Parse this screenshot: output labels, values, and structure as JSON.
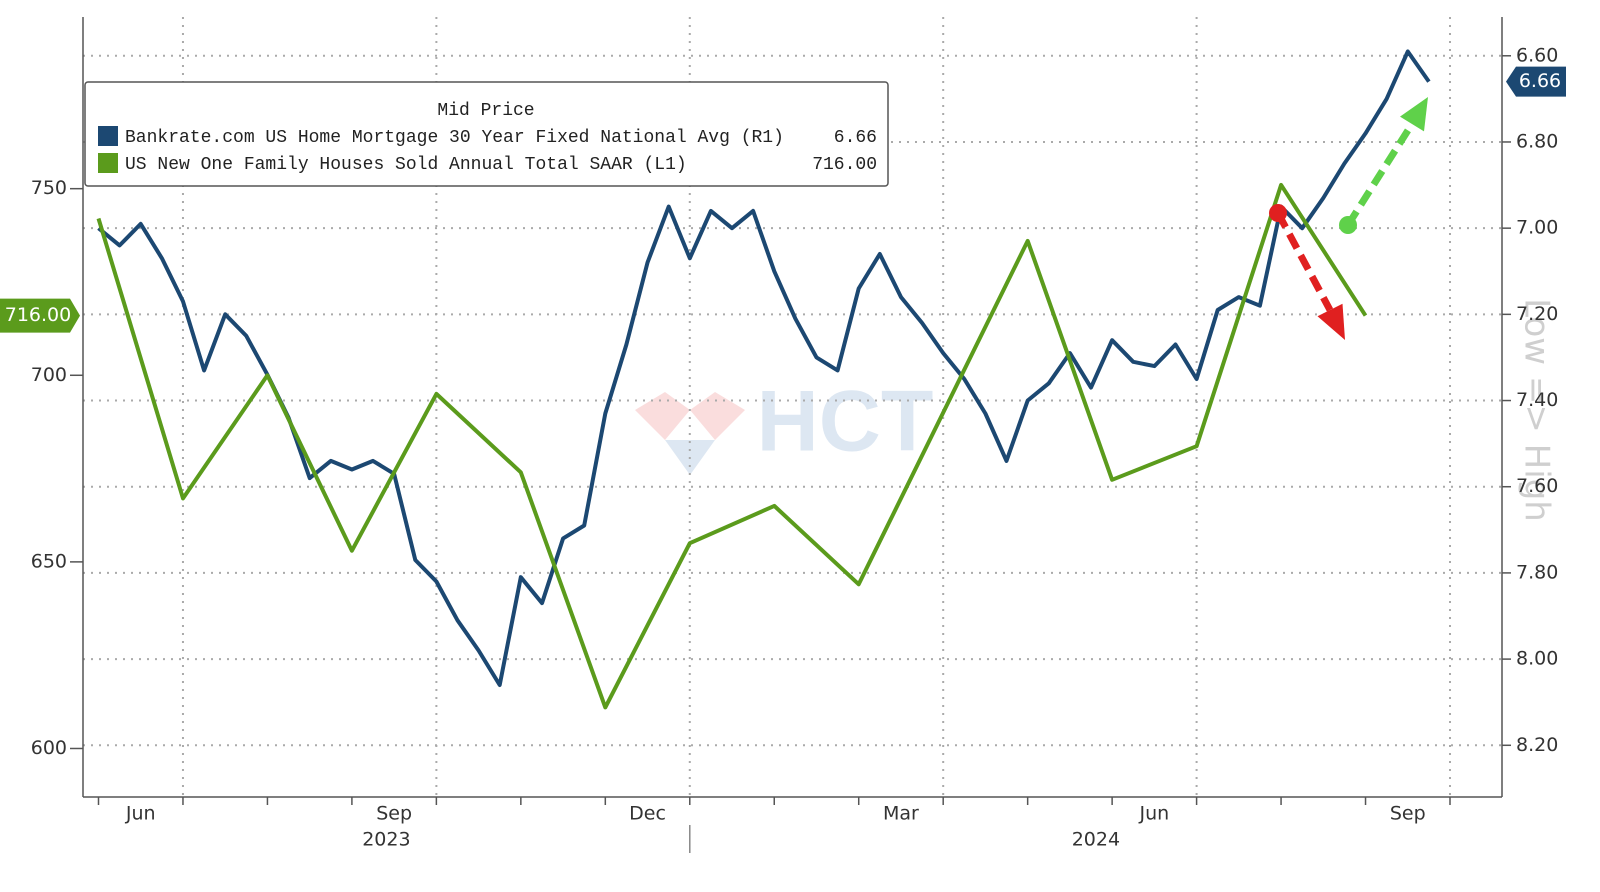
{
  "chart_data": {
    "type": "line",
    "legend_title": "Mid Price",
    "legend_position": "upper left",
    "y2_label": "Low => High",
    "watermark": "HCT",
    "grid": true,
    "xlim": [
      "2023-06",
      "2024-10"
    ],
    "xticks": [
      {
        "value": "2023-06",
        "label": "Jun"
      },
      {
        "value": "2023-09",
        "label": "Sep"
      },
      {
        "value": "2023-12",
        "label": "Dec"
      },
      {
        "value": "2024-03",
        "label": "Mar"
      },
      {
        "value": "2024-06",
        "label": "Jun"
      },
      {
        "value": "2024-09",
        "label": "Sep"
      }
    ],
    "year_labels": [
      "2023",
      "2024"
    ],
    "ylim": [
      587,
      796
    ],
    "yticks": [
      600,
      650,
      700,
      750
    ],
    "y2lim": [
      6.51,
      8.32
    ],
    "y2_inverted": true,
    "y2ticks": [
      {
        "value": 6.6,
        "label": "6.60"
      },
      {
        "value": 6.8,
        "label": "6.80"
      },
      {
        "value": 7.0,
        "label": "7.00"
      },
      {
        "value": 7.2,
        "label": "7.20"
      },
      {
        "value": 7.4,
        "label": "7.40"
      },
      {
        "value": 7.6,
        "label": "7.60"
      },
      {
        "value": 7.8,
        "label": "7.80"
      },
      {
        "value": 8.0,
        "label": "8.00"
      },
      {
        "value": 8.2,
        "label": "8.20"
      }
    ],
    "series": [
      {
        "name": "Bankrate.com US Home Mortgage 30 Year Fixed National Avg  (R1)",
        "color": "#1c4872",
        "axis": "y2",
        "values": [
          7.0,
          7.04,
          6.99,
          7.07,
          7.17,
          7.33,
          7.2,
          7.25,
          7.34,
          7.44,
          7.58,
          7.54,
          7.56,
          7.54,
          7.57,
          7.77,
          7.82,
          7.91,
          7.98,
          8.06,
          7.81,
          7.87,
          7.72,
          7.69,
          7.43,
          7.27,
          7.08,
          6.95,
          7.07,
          6.96,
          7.0,
          6.96,
          7.1,
          7.21,
          7.3,
          7.33,
          7.14,
          7.06,
          7.16,
          7.22,
          7.29,
          7.35,
          7.43,
          7.54,
          7.4,
          7.36,
          7.29,
          7.37,
          7.26,
          7.31,
          7.32,
          7.27,
          7.35,
          7.19,
          7.16,
          7.18,
          6.95,
          7.0,
          6.93,
          6.85,
          6.78,
          6.7,
          6.59,
          6.66,
          null
        ],
        "value_labels": [
          null,
          null,
          null,
          null,
          null,
          null,
          null,
          null,
          null,
          null,
          null,
          null,
          null,
          null,
          null,
          null,
          null,
          null,
          null,
          null,
          null,
          null,
          null,
          null,
          null,
          null,
          null,
          null,
          null,
          null,
          null,
          null,
          null,
          null,
          null,
          null,
          null,
          null,
          null,
          null,
          null,
          null,
          null,
          null,
          null,
          null,
          null,
          null,
          null,
          null,
          null,
          null,
          null,
          null,
          null,
          null,
          null,
          null,
          null,
          null,
          null,
          null,
          null,
          "6.66",
          null
        ]
      },
      {
        "name": "US New One Family Houses Sold Annual Total SAAR  (L1)",
        "color": "#5b9b1c",
        "axis": "y",
        "x": [
          "2023-06",
          "2023-07",
          "2023-08",
          "2023-09",
          "2023-10",
          "2023-11",
          "2023-12",
          "2024-01",
          "2024-02",
          "2024-03",
          "2024-04",
          "2024-05",
          "2024-06",
          "2024-07",
          "2024-08",
          "2024-09"
        ],
        "values": [
          742,
          667,
          700,
          653,
          695,
          674,
          611,
          655,
          665,
          644,
          690,
          736,
          672,
          681,
          751,
          716
        ],
        "value_labels": [
          null,
          null,
          null,
          null,
          null,
          null,
          null,
          null,
          null,
          null,
          null,
          null,
          null,
          null,
          null,
          "716.00"
        ]
      }
    ]
  }
}
